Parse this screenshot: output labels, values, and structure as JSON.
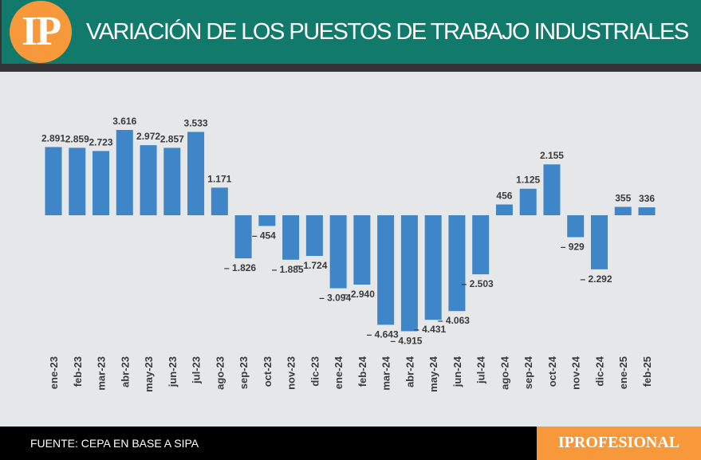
{
  "header": {
    "logo": "IP",
    "title": "VARIACIÓN DE LOS PUESTOS DE TRABAJO INDUSTRIALES"
  },
  "footer": {
    "source": "FUENTE: CEPA EN BASE A SIPA",
    "brand": "IPROFESIONAL"
  },
  "colors": {
    "bar": "#3f86c8",
    "header": "#127a6b",
    "logo": "#f7993a"
  },
  "chart_data": {
    "type": "bar",
    "title": "VARIACIÓN DE LOS PUESTOS DE TRABAJO INDUSTRIALES",
    "categories": [
      "ene-23",
      "feb-23",
      "mar-23",
      "abr-23",
      "may-23",
      "jun-23",
      "jul-23",
      "ago-23",
      "sep-23",
      "oct-23",
      "nov-23",
      "dic-23",
      "ene-24",
      "feb-24",
      "mar-24",
      "abr-24",
      "may-24",
      "jun-24",
      "jul-24",
      "ago-24",
      "sep-24",
      "oct-24",
      "nov-24",
      "dic-24",
      "ene-25",
      "feb-25"
    ],
    "values": [
      2891,
      2859,
      2723,
      3616,
      2972,
      2857,
      3533,
      1171,
      -1826,
      -454,
      -1885,
      -1724,
      -3094,
      -2940,
      -4643,
      -4915,
      -4431,
      -4063,
      -2503,
      456,
      1125,
      2155,
      -929,
      -2292,
      355,
      336
    ],
    "labels": [
      "2.891",
      "2.859",
      "2.723",
      "3.616",
      "2.972",
      "2.857",
      "3.533",
      "1.171",
      "– 1.826",
      "– 454",
      "– 1.885",
      "– 1.724",
      "– 3.094",
      "– 2.940",
      "– 4.643",
      "– 4.915",
      "– 4.431",
      "– 4.063",
      "– 2.503",
      "456",
      "1.125",
      "2.155",
      "– 929",
      "– 2.292",
      "355",
      "336"
    ],
    "grid": false,
    "legend": "none"
  }
}
